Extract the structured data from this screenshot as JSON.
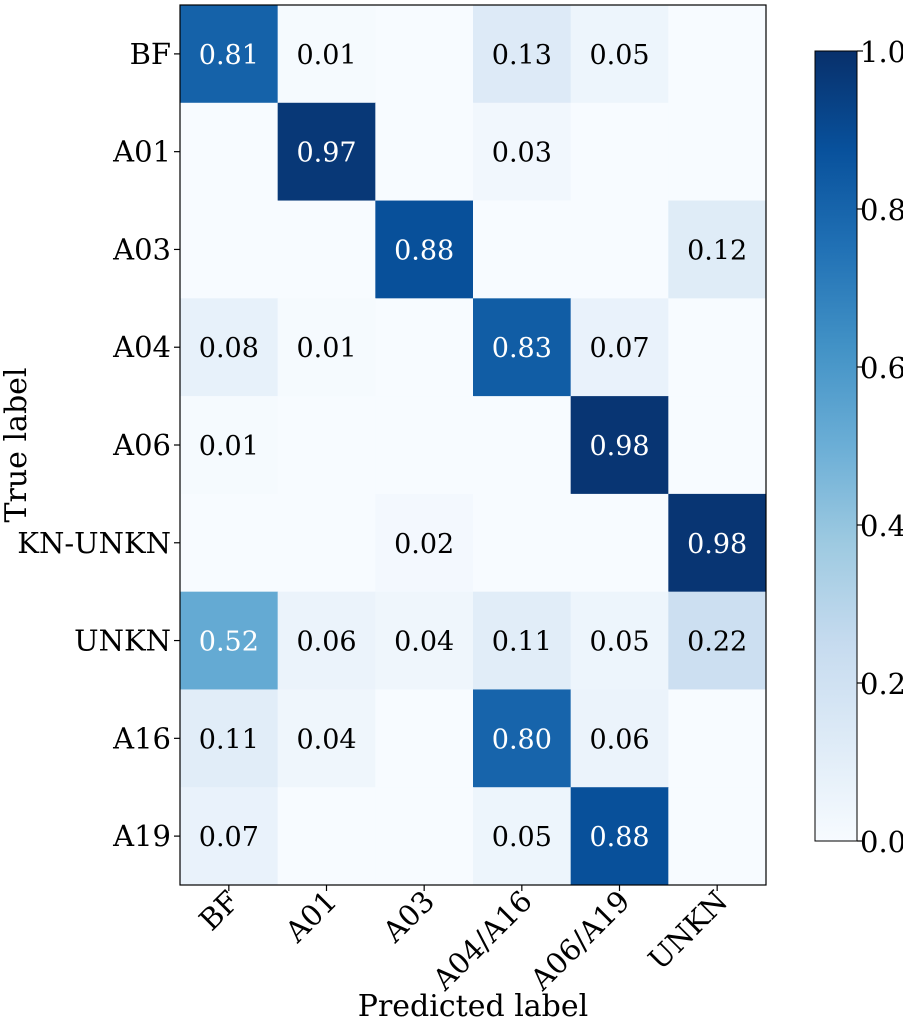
{
  "chart_data": {
    "type": "heatmap",
    "title": "",
    "xlabel": "Predicted label",
    "ylabel": "True label",
    "x_categories": [
      "BF",
      "A01",
      "A03",
      "A04/A16",
      "A06/A19",
      "UNKN"
    ],
    "y_categories": [
      "BF",
      "A01",
      "A03",
      "A04",
      "A06",
      "KN-UNKN",
      "UNKN",
      "A16",
      "A19"
    ],
    "values": [
      [
        0.81,
        0.01,
        0.0,
        0.13,
        0.05,
        0.0
      ],
      [
        0.0,
        0.97,
        0.0,
        0.03,
        0.0,
        0.0
      ],
      [
        0.0,
        0.0,
        0.88,
        0.0,
        0.0,
        0.12
      ],
      [
        0.08,
        0.01,
        0.0,
        0.83,
        0.07,
        0.0
      ],
      [
        0.01,
        0.0,
        0.0,
        0.0,
        0.98,
        0.0
      ],
      [
        0.0,
        0.0,
        0.02,
        0.0,
        0.0,
        0.98
      ],
      [
        0.52,
        0.06,
        0.04,
        0.11,
        0.05,
        0.22
      ],
      [
        0.11,
        0.04,
        0.0,
        0.8,
        0.06,
        0.0
      ],
      [
        0.07,
        0.0,
        0.0,
        0.05,
        0.88,
        0.0
      ]
    ],
    "cell_labels": [
      [
        "0.81",
        "0.01",
        "",
        "0.13",
        "0.05",
        ""
      ],
      [
        "",
        "0.97",
        "",
        "0.03",
        "",
        ""
      ],
      [
        "",
        "",
        "0.88",
        "",
        "",
        "0.12"
      ],
      [
        "0.08",
        "0.01",
        "",
        "0.83",
        "0.07",
        ""
      ],
      [
        "0.01",
        "",
        "",
        "",
        "0.98",
        ""
      ],
      [
        "",
        "",
        "0.02",
        "",
        "",
        "0.98"
      ],
      [
        "0.52",
        "0.06",
        "0.04",
        "0.11",
        "0.05",
        "0.22"
      ],
      [
        "0.11",
        "0.04",
        "",
        "0.80",
        "0.06",
        ""
      ],
      [
        "0.07",
        "",
        "",
        "0.05",
        "0.88",
        ""
      ]
    ],
    "colorscale": "Blues",
    "colorscale_stops": [
      "#f7fbff",
      "#deebf7",
      "#c6dbef",
      "#9ecae1",
      "#6baed6",
      "#4292c6",
      "#2171b5",
      "#08519c",
      "#08306b"
    ],
    "value_range": [
      0.0,
      1.0
    ],
    "colorbar_ticks": [
      "0.0",
      "0.2",
      "0.4",
      "0.6",
      "0.8",
      "1.0"
    ]
  }
}
